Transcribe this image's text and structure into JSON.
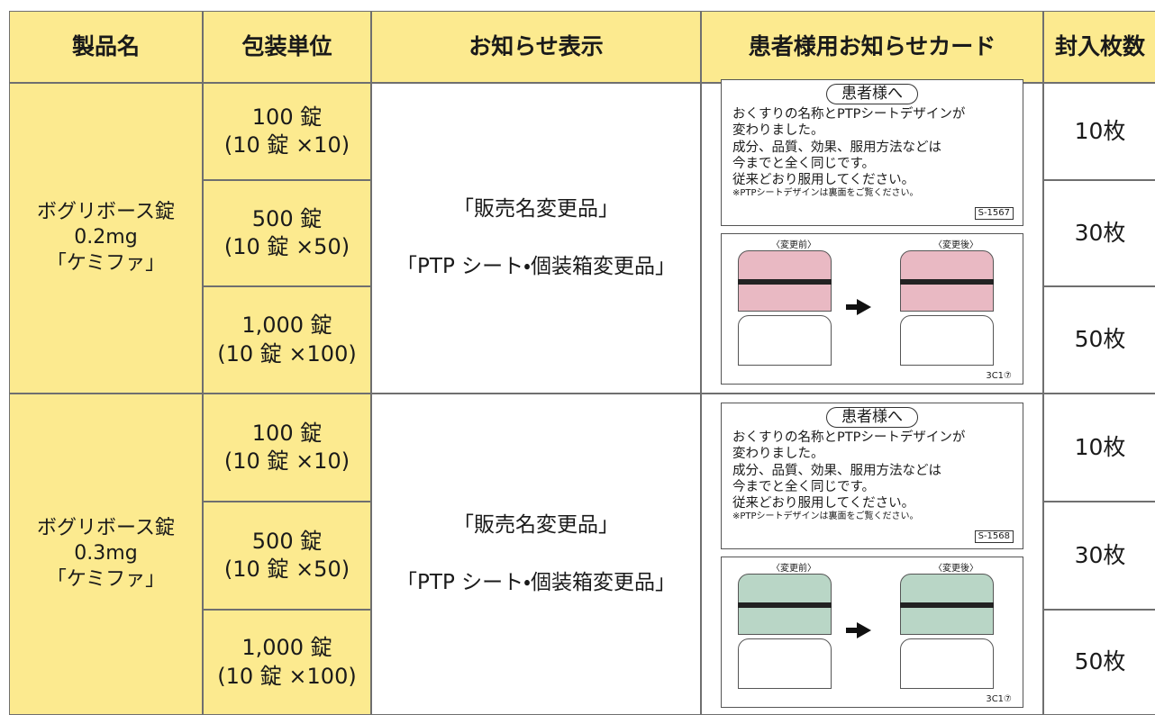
{
  "table": {
    "header": [
      "製品名",
      "包装単位",
      "お知らせ表示",
      "患者様用お知らせカード",
      "封入枚数"
    ],
    "groups": [
      {
        "product": [
          "ボグリボース錠",
          "0.2mg",
          "「ケミファ」"
        ],
        "packages": [
          {
            "qty": "100 錠",
            "unit": "(10 錠 ×10)",
            "count": "10枚"
          },
          {
            "qty": "500 錠",
            "unit": "(10 錠 ×50)",
            "count": "30枚"
          },
          {
            "qty": "1,000 錠",
            "unit": "(10 錠 ×100)",
            "count": "50枚"
          }
        ],
        "notice": [
          "「販売名変更品」",
          "「PTP シート・個装箱変更品」"
        ],
        "card": {
          "badge": "患者様へ",
          "lines": [
            "おくすりの名称とPTPシートデザインが",
            "変わりました。",
            "成分、品質、効果、服用方法などは",
            "今までと全く同じです。",
            "従来どおり服用してください。"
          ],
          "note": "※PTPシートデザインは裏面をご覧ください。",
          "code": "S-1567",
          "before": "〈変更前〉",
          "after": "〈変更後〉",
          "lot": "3C1⑦"
        }
      },
      {
        "product": [
          "ボグリボース錠",
          "0.3mg",
          "「ケミファ」"
        ],
        "packages": [
          {
            "qty": "100 錠",
            "unit": "(10 錠 ×10)",
            "count": "10枚"
          },
          {
            "qty": "500 錠",
            "unit": "(10 錠 ×50)",
            "count": "30枚"
          },
          {
            "qty": "1,000 錠",
            "unit": "(10 錠 ×100)",
            "count": "50枚"
          }
        ],
        "notice": [
          "「販売名変更品」",
          "「PTP シート・個装箱変更品」"
        ],
        "card": {
          "badge": "患者様へ",
          "lines": [
            "おくすりの名称とPTPシートデザインが",
            "変わりました。",
            "成分、品質、効果、服用方法などは",
            "今までと全く同じです。",
            "従来どおり服用してください。"
          ],
          "note": "※PTPシートデザインは裏面をご覧ください。",
          "code": "S-1568",
          "before": "〈変更前〉",
          "after": "〈変更後〉",
          "lot": "3C1⑦"
        }
      }
    ]
  }
}
